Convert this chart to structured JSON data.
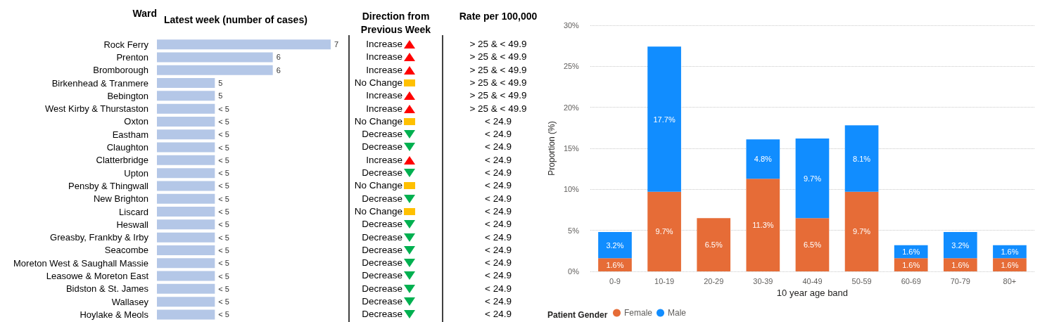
{
  "chart_data": [
    {
      "type": "bar",
      "orientation": "horizontal",
      "xlim": [
        4,
        7
      ],
      "tick_labels": "y",
      "title": "Latest week (number of cases)",
      "ylabel": "Ward",
      "color": "#b4c7e7",
      "grid": false,
      "legend": false,
      "categories": [
        "Rock Ferry",
        "Prenton",
        "Bromborough",
        "Birkenhead & Tranmere",
        "Bebington",
        "West Kirby & Thurstaston",
        "Oxton",
        "Eastham",
        "Claughton",
        "Clatterbridge",
        "Upton",
        "Pensby & Thingwall",
        "New Brighton",
        "Liscard",
        "Heswall",
        "Greasby, Frankby & Irby",
        "Seacombe",
        "Moreton West & Saughall Massie",
        "Leasowe & Moreton East",
        "Bidston & St. James",
        "Wallasey",
        "Hoylake & Meols"
      ],
      "values": [
        7,
        6,
        6,
        5,
        5,
        5,
        5,
        5,
        5,
        5,
        5,
        5,
        5,
        5,
        5,
        5,
        5,
        5,
        5,
        5,
        5,
        5
      ],
      "value_labels": [
        "7",
        "6",
        "6",
        "5",
        "5",
        "< 5",
        "< 5",
        "< 5",
        "< 5",
        "< 5",
        "< 5",
        "< 5",
        "< 5",
        "< 5",
        "< 5",
        "< 5",
        "< 5",
        "< 5",
        "< 5",
        "< 5",
        "< 5",
        "< 5"
      ]
    },
    {
      "type": "other",
      "title": "Direction from Previous Week",
      "annotations": [
        "Increase",
        "Increase",
        "Increase",
        "No Change",
        "Increase",
        "Increase",
        "No Change",
        "Decrease",
        "Decrease",
        "Increase",
        "Decrease",
        "No Change",
        "Decrease",
        "No Change",
        "Decrease",
        "Decrease",
        "Decrease",
        "Decrease",
        "Decrease",
        "Decrease",
        "Decrease",
        "Decrease"
      ],
      "colors": [
        "#ff0000",
        "#ff0000",
        "#ff0000",
        "#ffc000",
        "#ff0000",
        "#ff0000",
        "#ffc000",
        "#00b050",
        "#00b050",
        "#ff0000",
        "#00b050",
        "#ffc000",
        "#00b050",
        "#ffc000",
        "#00b050",
        "#00b050",
        "#00b050",
        "#00b050",
        "#00b050",
        "#00b050",
        "#00b050",
        "#00b050"
      ]
    },
    {
      "type": "other",
      "title": "Rate per 100,000",
      "annotations": [
        "> 25 & < 49.9",
        "> 25 & < 49.9",
        "> 25 & < 49.9",
        "> 25 & < 49.9",
        "> 25 & < 49.9",
        "> 25 & < 49.9",
        "< 24.9",
        "< 24.9",
        "< 24.9",
        "< 24.9",
        "< 24.9",
        "< 24.9",
        "< 24.9",
        "< 24.9",
        "< 24.9",
        "< 24.9",
        "< 24.9",
        "< 24.9",
        "< 24.9",
        "< 24.9",
        "< 24.9",
        "< 24.9"
      ]
    },
    {
      "type": "bar",
      "stacked": true,
      "xlabel": "10 year age band",
      "ylabel": "Proportion (%)",
      "legend_title": "Patient Gender",
      "legend": "bottom left",
      "grid": "y",
      "categories": [
        "0-9",
        "10-19",
        "20-29",
        "30-39",
        "40-49",
        "50-59",
        "60-69",
        "70-79",
        "80+"
      ],
      "ylim": [
        0,
        30
      ],
      "yticks": [
        {
          "value": 0,
          "label": "0%"
        },
        {
          "value": 5,
          "label": "5%"
        },
        {
          "value": 10,
          "label": "10%"
        },
        {
          "value": 15,
          "label": "15%"
        },
        {
          "value": 20,
          "label": "20%"
        },
        {
          "value": 25,
          "label": "25%"
        },
        {
          "value": 30,
          "label": "30%"
        }
      ],
      "series": [
        {
          "name": "Female",
          "color": "#e66c37",
          "values": [
            1.6,
            9.7,
            6.5,
            11.3,
            6.5,
            9.7,
            1.6,
            1.6,
            1.6
          ],
          "value_labels": [
            "1.6%",
            "9.7%",
            "6.5%",
            "11.3%",
            "6.5%",
            "9.7%",
            "1.6%",
            "1.6%",
            "1.6%"
          ]
        },
        {
          "name": "Male",
          "color": "#118dff",
          "values": [
            3.2,
            17.7,
            null,
            4.8,
            9.7,
            8.1,
            1.6,
            3.2,
            1.6
          ],
          "value_labels": [
            "3.2%",
            "17.7%",
            null,
            "4.8%",
            "9.7%",
            "8.1%",
            "1.6%",
            "3.2%",
            "1.6%"
          ]
        }
      ]
    }
  ]
}
